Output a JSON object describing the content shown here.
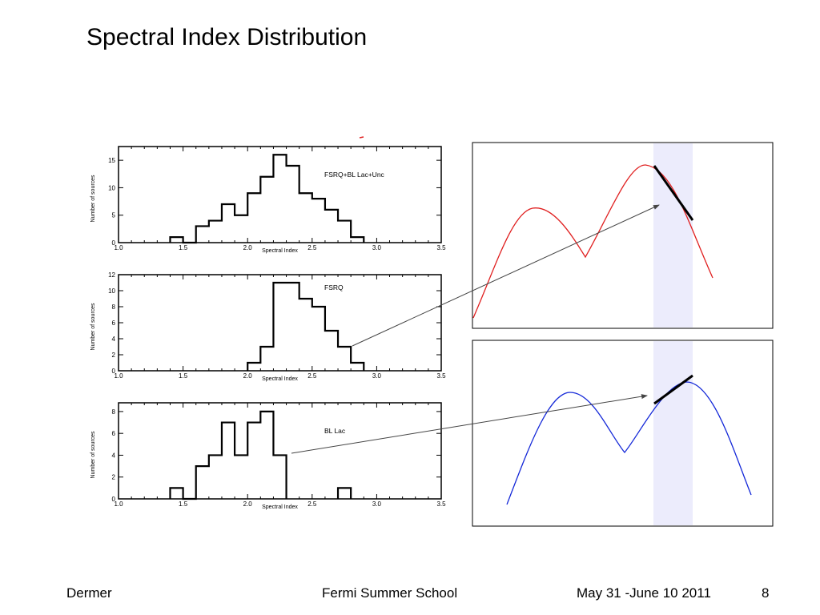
{
  "slide": {
    "title": "Spectral Index Distribution",
    "footer": {
      "author": "Dermer",
      "event": "Fermi Summer School",
      "date": "May 31 -June 10 2011",
      "page": "8"
    }
  },
  "chart_data": [
    {
      "type": "histogram",
      "panel": "top",
      "annotation": "FSRQ+BL Lac+Unc",
      "xlabel": "Spectral Index",
      "ylabel": "Number of sources",
      "xlim": [
        1.0,
        3.5
      ],
      "ylim": [
        0,
        17.5
      ],
      "xticks": [
        "1.0",
        "1.5",
        "2.0",
        "2.5",
        "3.0",
        "3.5"
      ],
      "yticks": [
        0,
        5,
        10,
        15
      ],
      "bin_width": 0.1,
      "bins": [
        [
          1.4,
          1
        ],
        [
          1.5,
          0
        ],
        [
          1.6,
          3
        ],
        [
          1.7,
          4
        ],
        [
          1.8,
          7
        ],
        [
          1.9,
          5
        ],
        [
          2.0,
          9
        ],
        [
          2.1,
          12
        ],
        [
          2.2,
          16
        ],
        [
          2.3,
          14
        ],
        [
          2.4,
          9
        ],
        [
          2.5,
          8
        ],
        [
          2.6,
          6
        ],
        [
          2.7,
          4
        ],
        [
          2.8,
          1
        ]
      ],
      "color": "#000000"
    },
    {
      "type": "histogram",
      "panel": "middle",
      "annotation": "FSRQ",
      "xlabel": "Spectral Index",
      "ylabel": "Number of sources",
      "xlim": [
        1.0,
        3.5
      ],
      "ylim": [
        0,
        12
      ],
      "xticks": [
        "1.0",
        "1.5",
        "2.0",
        "2.5",
        "3.0",
        "3.5"
      ],
      "yticks": [
        0,
        2,
        4,
        6,
        8,
        10,
        12
      ],
      "bin_width": 0.1,
      "bins": [
        [
          2.0,
          1
        ],
        [
          2.1,
          3
        ],
        [
          2.2,
          11
        ],
        [
          2.3,
          11
        ],
        [
          2.4,
          9
        ],
        [
          2.5,
          8
        ],
        [
          2.6,
          5
        ],
        [
          2.7,
          3
        ],
        [
          2.8,
          1
        ]
      ],
      "color": "#000000"
    },
    {
      "type": "histogram",
      "panel": "bottom",
      "annotation": "BL Lac",
      "xlabel": "Spectral Index",
      "ylabel": "Number of sources",
      "xlim": [
        1.0,
        3.5
      ],
      "ylim": [
        0,
        8.8
      ],
      "xticks": [
        "1.0",
        "1.5",
        "2.0",
        "2.5",
        "3.0",
        "3.5"
      ],
      "yticks": [
        0,
        2,
        4,
        6,
        8
      ],
      "bin_width": 0.1,
      "bins": [
        [
          1.4,
          1
        ],
        [
          1.5,
          0
        ],
        [
          1.6,
          3
        ],
        [
          1.7,
          4
        ],
        [
          1.8,
          7
        ],
        [
          1.9,
          4
        ],
        [
          2.0,
          7
        ],
        [
          2.1,
          8
        ],
        [
          2.2,
          4
        ],
        [
          2.7,
          1
        ]
      ],
      "color": "#000000"
    },
    {
      "type": "line",
      "panel": "schematic-red",
      "description_color": "#e02020",
      "highlight_color": "#ececfc",
      "line_color": "#e02020"
    },
    {
      "type": "line",
      "panel": "schematic-blue",
      "line_color": "#1428d8",
      "highlight_color": "#ececfc"
    }
  ]
}
